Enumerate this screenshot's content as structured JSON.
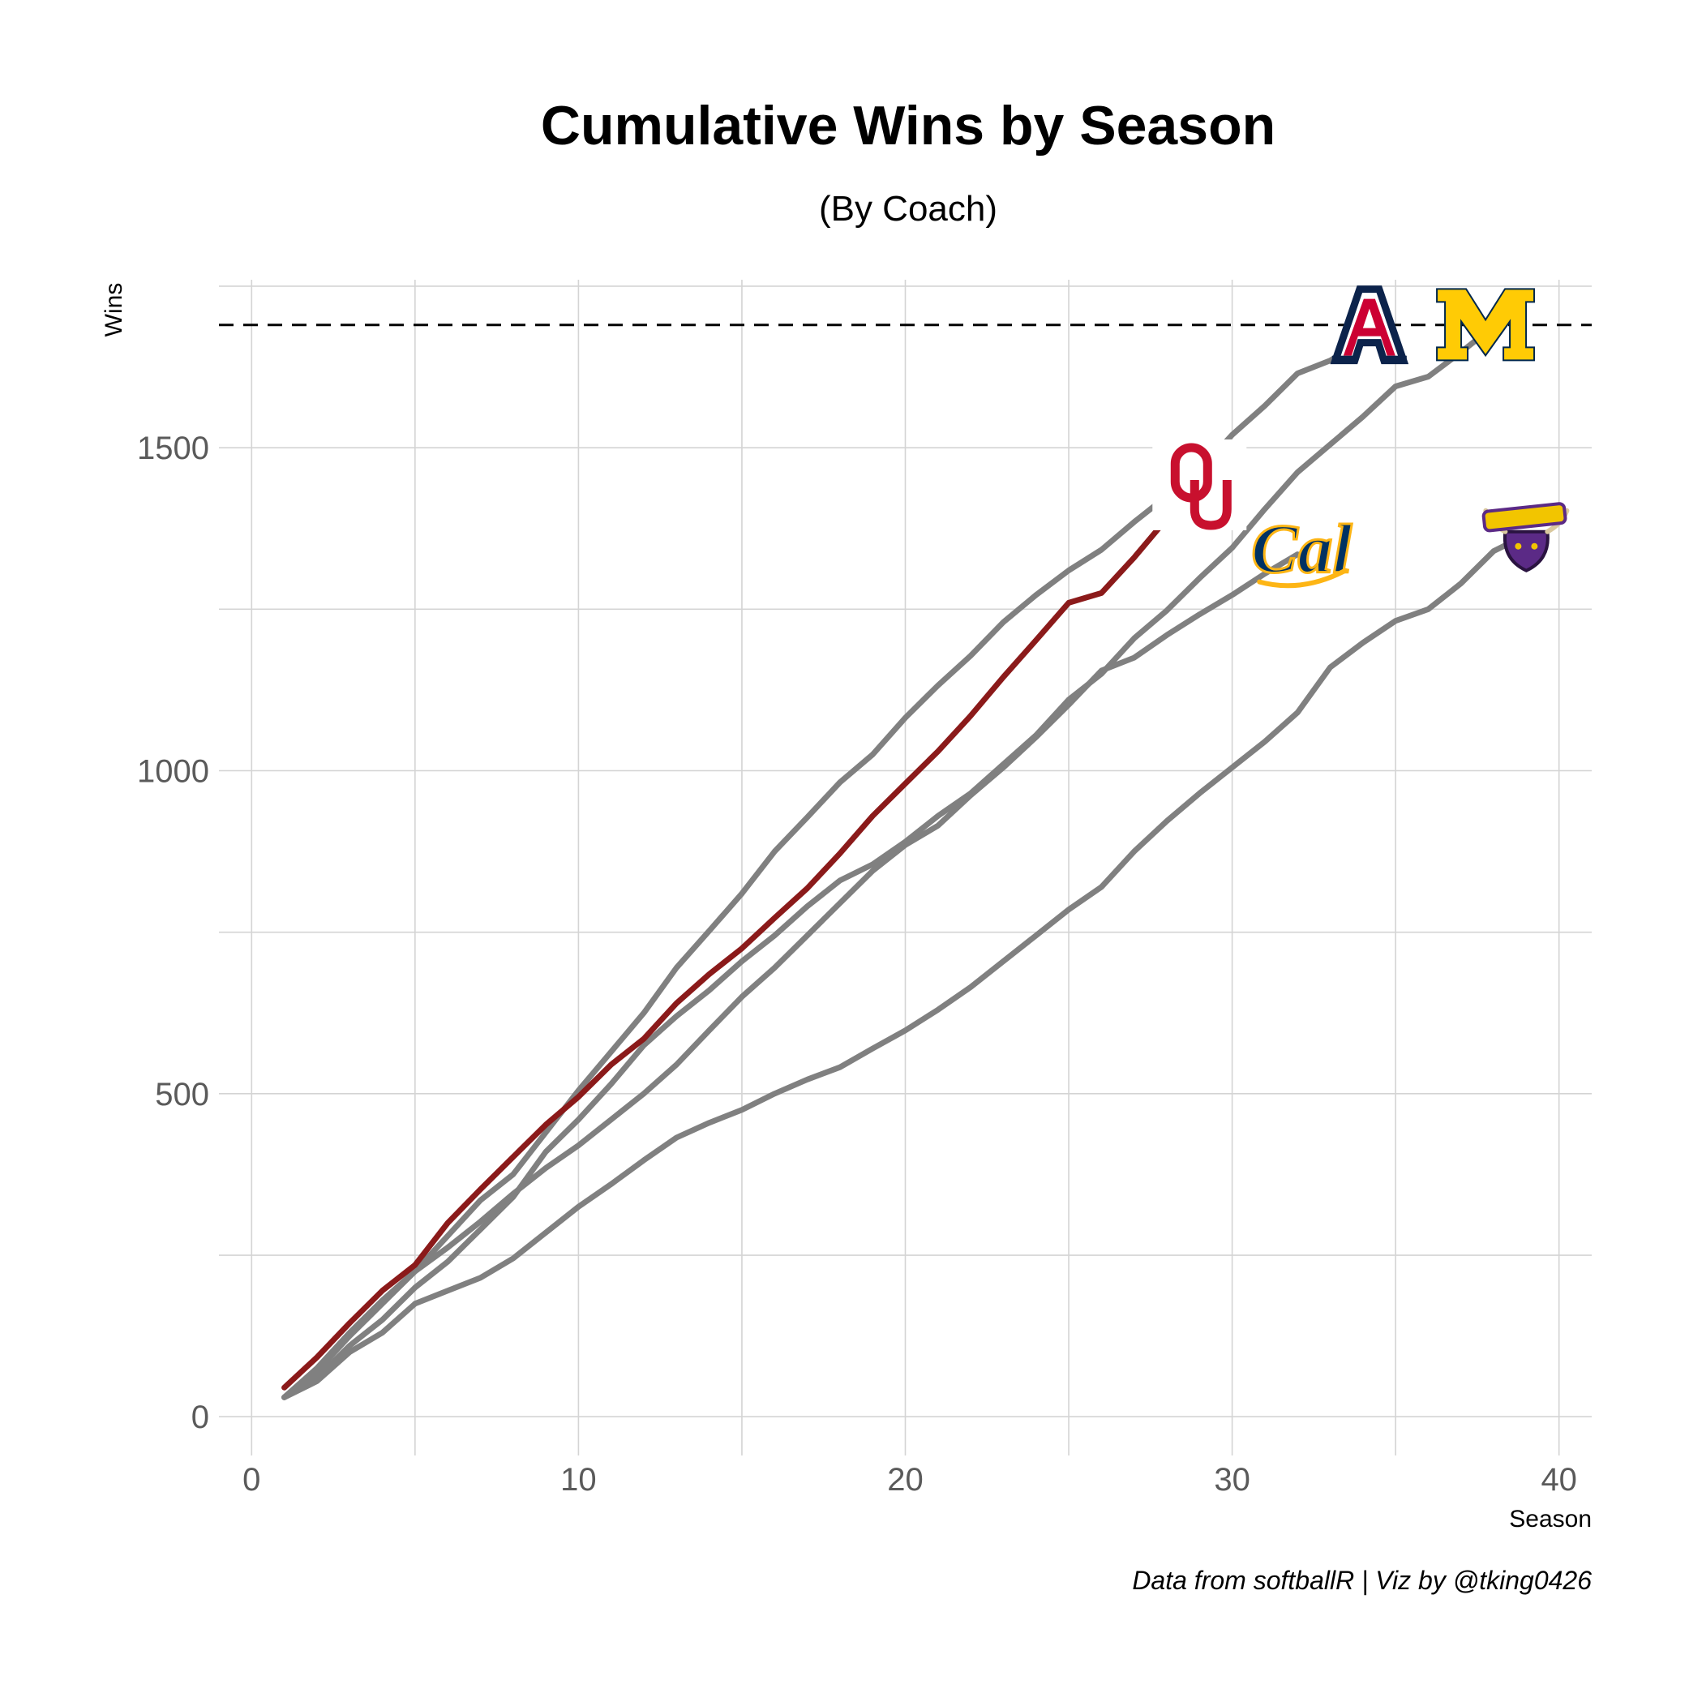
{
  "chart_data": {
    "type": "line",
    "title": "Cumulative Wins by Season",
    "subtitle": "(By Coach)",
    "xlabel": "Season",
    "ylabel": "Wins",
    "xlim": [
      -1,
      41
    ],
    "ylim": [
      -60,
      1760
    ],
    "xticks": [
      0,
      10,
      20,
      30,
      40
    ],
    "yticks": [
      0,
      500,
      1000,
      1500
    ],
    "reference_line": 1690,
    "grid": true,
    "caption": "Data from softballR | Viz by @tking0426",
    "colors": {
      "highlight": "#8b1a1a",
      "other": "#808080",
      "reference": "#000000"
    },
    "series": [
      {
        "logo": "oklahoma-logo",
        "color": "#8b1a1a",
        "highlight": true,
        "x": [
          1,
          2,
          3,
          4,
          5,
          6,
          7,
          8,
          9,
          10,
          11,
          12,
          13,
          14,
          15,
          16,
          17,
          18,
          19,
          20,
          21,
          22,
          23,
          24,
          25,
          26,
          27,
          28,
          29
        ],
        "y": [
          45,
          92,
          145,
          195,
          235,
          300,
          352,
          402,
          452,
          495,
          545,
          585,
          640,
          685,
          725,
          772,
          818,
          872,
          930,
          980,
          1030,
          1085,
          1145,
          1202,
          1260,
          1275,
          1330,
          1390,
          1440
        ]
      },
      {
        "logo": "arizona-logo",
        "color": "#808080",
        "highlight": false,
        "x": [
          1,
          2,
          3,
          4,
          5,
          6,
          7,
          8,
          9,
          10,
          11,
          12,
          13,
          14,
          15,
          16,
          17,
          18,
          19,
          20,
          21,
          22,
          23,
          24,
          25,
          26,
          27,
          28,
          29,
          30,
          31,
          32,
          33,
          34
        ],
        "y": [
          30,
          70,
          125,
          175,
          225,
          280,
          335,
          375,
          440,
          505,
          565,
          625,
          695,
          752,
          810,
          875,
          928,
          982,
          1025,
          1082,
          1132,
          1178,
          1230,
          1272,
          1310,
          1342,
          1385,
          1425,
          1465,
          1520,
          1565,
          1615,
          1635,
          1665
        ]
      },
      {
        "logo": "michigan-logo",
        "color": "#808080",
        "highlight": false,
        "x": [
          1,
          2,
          3,
          4,
          5,
          6,
          7,
          8,
          9,
          10,
          11,
          12,
          13,
          14,
          15,
          16,
          17,
          18,
          19,
          20,
          21,
          22,
          23,
          24,
          25,
          26,
          27,
          28,
          29,
          30,
          31,
          32,
          33,
          34,
          35,
          36,
          37,
          38
        ],
        "y": [
          30,
          60,
          110,
          150,
          200,
          240,
          290,
          340,
          410,
          460,
          515,
          575,
          620,
          660,
          705,
          745,
          790,
          830,
          855,
          890,
          930,
          965,
          1010,
          1055,
          1110,
          1150,
          1205,
          1248,
          1298,
          1345,
          1405,
          1462,
          1505,
          1548,
          1595,
          1610,
          1648,
          1688
        ]
      },
      {
        "logo": "cal-logo",
        "color": "#808080",
        "highlight": false,
        "x": [
          1,
          2,
          3,
          4,
          5,
          6,
          7,
          8,
          9,
          10,
          11,
          12,
          13,
          14,
          15,
          16,
          17,
          18,
          19,
          20,
          21,
          22,
          23,
          24,
          25,
          26,
          27,
          28,
          29,
          30,
          31,
          32
        ],
        "y": [
          30,
          75,
          130,
          180,
          225,
          262,
          302,
          345,
          385,
          420,
          460,
          500,
          545,
          598,
          650,
          695,
          745,
          795,
          845,
          885,
          915,
          962,
          1005,
          1052,
          1102,
          1155,
          1175,
          1210,
          1242,
          1272,
          1305,
          1335
        ]
      },
      {
        "logo": "minnesota-state-logo",
        "color": "#808080",
        "highlight": false,
        "x": [
          1,
          2,
          3,
          4,
          5,
          6,
          7,
          8,
          9,
          10,
          11,
          12,
          13,
          14,
          15,
          16,
          17,
          18,
          19,
          20,
          21,
          22,
          23,
          24,
          25,
          26,
          27,
          28,
          29,
          30,
          31,
          32,
          33,
          34,
          35,
          36,
          37,
          38,
          39
        ],
        "y": [
          30,
          55,
          100,
          130,
          175,
          195,
          215,
          245,
          285,
          325,
          360,
          397,
          432,
          455,
          475,
          500,
          522,
          541,
          570,
          598,
          630,
          665,
          705,
          745,
          785,
          820,
          875,
          922,
          965,
          1005,
          1045,
          1090,
          1160,
          1198,
          1232,
          1250,
          1290,
          1340,
          1365
        ]
      }
    ]
  }
}
